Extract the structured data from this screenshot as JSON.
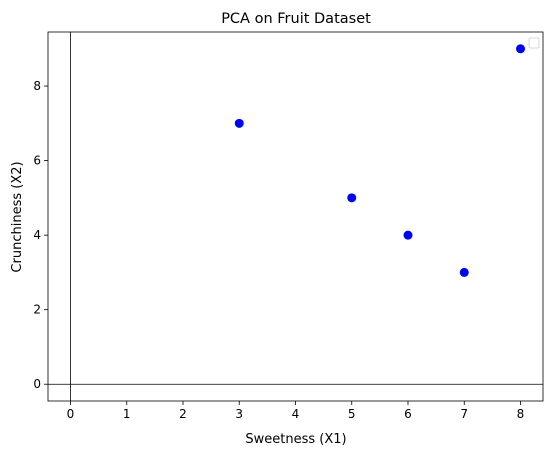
{
  "chart_data": {
    "type": "scatter",
    "title": "PCA on Fruit Dataset",
    "xlabel": "Sweetness (X1)",
    "ylabel": "Crunchiness (X2)",
    "xlim": [
      -0.4,
      8.4
    ],
    "ylim": [
      -0.45,
      9.45
    ],
    "xticks": [
      0,
      1,
      2,
      3,
      4,
      5,
      6,
      7,
      8
    ],
    "yticks": [
      0,
      2,
      4,
      6,
      8
    ],
    "reference_lines": {
      "x": 0,
      "y": 0
    },
    "grid": false,
    "legend": {
      "placement": "top-right",
      "entries": []
    },
    "series": [
      {
        "color": "#0000ff",
        "points": [
          {
            "x": 3,
            "y": 7
          },
          {
            "x": 5,
            "y": 5
          },
          {
            "x": 6,
            "y": 4
          },
          {
            "x": 7,
            "y": 3
          },
          {
            "x": 8,
            "y": 9
          }
        ]
      }
    ]
  }
}
